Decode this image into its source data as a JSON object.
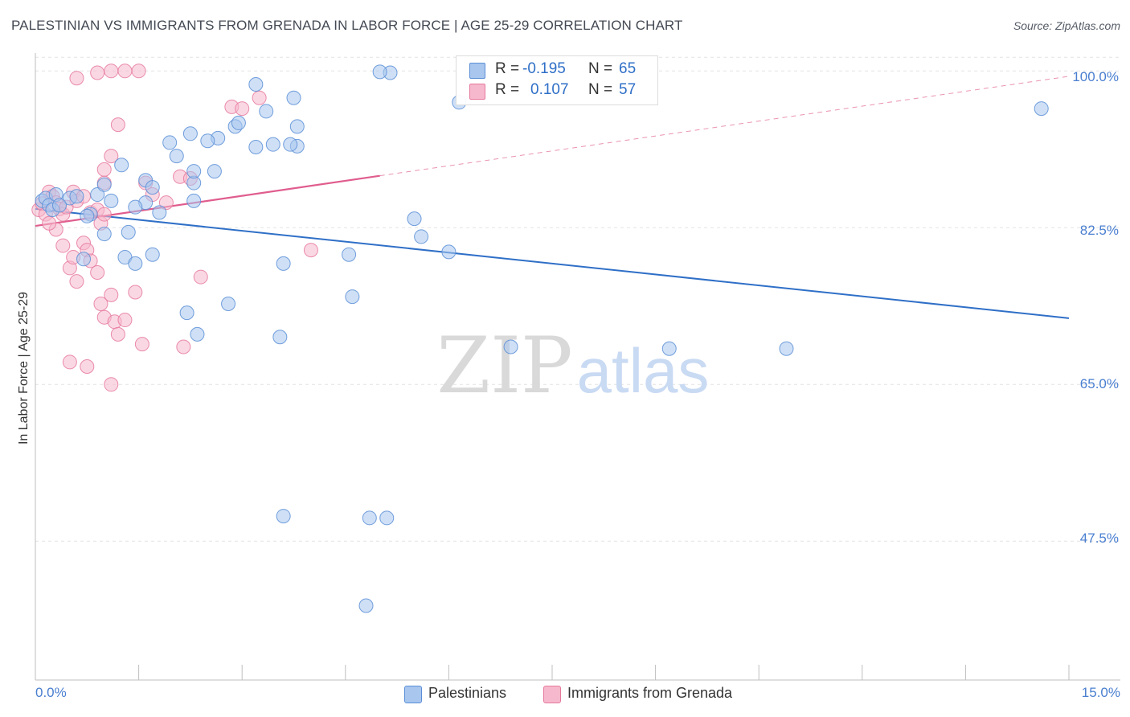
{
  "header": {
    "title": "PALESTINIAN VS IMMIGRANTS FROM GRENADA IN LABOR FORCE | AGE 25-29 CORRELATION CHART",
    "source": "Source: ZipAtlas.com"
  },
  "watermark": {
    "part1": "ZIP",
    "part2": "atlas"
  },
  "colors": {
    "blue_fill": "#a8c6ee",
    "blue_stroke": "#5b8ed6",
    "blue_line": "#2f6fc7",
    "pink_fill": "#f6b8cc",
    "pink_stroke": "#e6799d",
    "pink_line": "#e05d8e",
    "tick_label": "#4a7fd0"
  },
  "legend": {
    "series1": {
      "r_label": "R =",
      "r_value": "-0.195",
      "n_label": "N =",
      "n_value": "65"
    },
    "series2": {
      "r_label": "R =",
      "r_value": "0.107",
      "n_label": "N =",
      "n_value": "57"
    }
  },
  "chart_data": {
    "type": "scatter",
    "title": "PALESTINIAN VS IMMIGRANTS FROM GRENADA IN LABOR FORCE | AGE 25-29 CORRELATION CHART",
    "xlabel": "",
    "ylabel": "In Labor Force | Age 25-29",
    "xlim": [
      0,
      15
    ],
    "ylim": [
      32,
      102
    ],
    "x_tick_labels": [
      "0.0%",
      "15.0%"
    ],
    "y_ticks": [
      {
        "value": 100,
        "label": "100.0%"
      },
      {
        "value": 82.5,
        "label": "82.5%"
      },
      {
        "value": 65,
        "label": "65.0%"
      },
      {
        "value": 47.5,
        "label": "47.5%"
      }
    ],
    "grid": true,
    "legend_position": "top-center",
    "series": [
      {
        "name": "Palestinians",
        "color": "blue",
        "trend": {
          "x0": 0,
          "y0": 84.6,
          "x1": 15,
          "y1": 72.4
        },
        "points": [
          [
            0.1,
            85.5
          ],
          [
            0.15,
            85.8
          ],
          [
            0.2,
            85.0
          ],
          [
            0.25,
            84.5
          ],
          [
            0.3,
            86.2
          ],
          [
            0.5,
            85.8
          ],
          [
            0.6,
            86.0
          ],
          [
            0.7,
            79.0
          ],
          [
            0.8,
            84.0
          ],
          [
            0.9,
            86.2
          ],
          [
            1.0,
            81.8
          ],
          [
            1.1,
            85.5
          ],
          [
            1.25,
            89.5
          ],
          [
            1.3,
            79.2
          ],
          [
            1.0,
            87.3
          ],
          [
            0.35,
            85.0
          ],
          [
            0.75,
            83.8
          ],
          [
            1.6,
            87.8
          ],
          [
            1.7,
            79.5
          ],
          [
            1.8,
            84.2
          ],
          [
            1.6,
            85.3
          ],
          [
            2.3,
            85.5
          ],
          [
            2.3,
            87.5
          ],
          [
            2.6,
            88.8
          ],
          [
            2.65,
            92.5
          ],
          [
            1.45,
            78.5
          ],
          [
            1.35,
            82.0
          ],
          [
            1.45,
            84.8
          ],
          [
            1.95,
            92.0
          ],
          [
            2.25,
            93.0
          ],
          [
            2.5,
            92.2
          ],
          [
            2.05,
            90.5
          ],
          [
            2.3,
            88.8
          ],
          [
            2.2,
            73.0
          ],
          [
            2.9,
            93.8
          ],
          [
            3.2,
            91.5
          ],
          [
            3.8,
            91.6
          ],
          [
            3.45,
            91.8
          ],
          [
            3.8,
            93.8
          ],
          [
            3.35,
            95.5
          ],
          [
            3.75,
            97.0
          ],
          [
            3.7,
            91.8
          ],
          [
            3.2,
            98.5
          ],
          [
            2.95,
            94.2
          ],
          [
            3.6,
            78.5
          ],
          [
            4.55,
            79.5
          ],
          [
            4.6,
            74.8
          ],
          [
            5.5,
            83.5
          ],
          [
            5.6,
            81.5
          ],
          [
            6.0,
            79.8
          ],
          [
            2.35,
            70.6
          ],
          [
            2.8,
            74.0
          ],
          [
            3.55,
            70.3
          ],
          [
            3.6,
            50.3
          ],
          [
            4.85,
            50.1
          ],
          [
            5.1,
            50.1
          ],
          [
            4.8,
            40.3
          ],
          [
            5.15,
            99.8
          ],
          [
            6.15,
            96.5
          ],
          [
            6.9,
            69.2
          ],
          [
            9.2,
            69.0
          ],
          [
            10.9,
            69.0
          ],
          [
            14.6,
            95.8
          ],
          [
            5.0,
            99.9
          ],
          [
            1.7,
            87.0
          ]
        ]
      },
      {
        "name": "Immigrants from Grenada",
        "color": "pink",
        "trend": {
          "x0": 0,
          "y0": 82.7,
          "x1": 5.0,
          "y1": 88.3
        },
        "trend_ext": {
          "x0": 5.0,
          "y0": 88.3,
          "x1": 15,
          "y1": 99.4
        },
        "points": [
          [
            0.05,
            84.5
          ],
          [
            0.1,
            85.2
          ],
          [
            0.15,
            84.0
          ],
          [
            0.2,
            86.5
          ],
          [
            0.25,
            86.0
          ],
          [
            0.3,
            85.3
          ],
          [
            0.35,
            84.6
          ],
          [
            0.4,
            84.0
          ],
          [
            0.45,
            84.8
          ],
          [
            0.55,
            86.5
          ],
          [
            0.6,
            85.5
          ],
          [
            0.7,
            86.0
          ],
          [
            0.8,
            84.2
          ],
          [
            0.9,
            84.5
          ],
          [
            0.95,
            83.0
          ],
          [
            1.0,
            84.0
          ],
          [
            0.3,
            82.3
          ],
          [
            0.4,
            80.5
          ],
          [
            0.5,
            78.0
          ],
          [
            0.55,
            79.2
          ],
          [
            0.6,
            76.5
          ],
          [
            0.7,
            80.8
          ],
          [
            0.75,
            80.0
          ],
          [
            0.8,
            78.8
          ],
          [
            0.9,
            77.5
          ],
          [
            0.95,
            74.0
          ],
          [
            1.0,
            72.5
          ],
          [
            1.1,
            75.0
          ],
          [
            1.15,
            72.0
          ],
          [
            1.2,
            70.6
          ],
          [
            1.3,
            72.2
          ],
          [
            1.6,
            87.5
          ],
          [
            1.7,
            86.2
          ],
          [
            1.9,
            85.3
          ],
          [
            2.1,
            88.2
          ],
          [
            2.25,
            88.0
          ],
          [
            2.4,
            77.0
          ],
          [
            2.85,
            96.0
          ],
          [
            3.0,
            95.8
          ],
          [
            3.25,
            97.0
          ],
          [
            1.0,
            89.0
          ],
          [
            1.1,
            90.5
          ],
          [
            1.2,
            94.0
          ],
          [
            0.6,
            99.2
          ],
          [
            0.9,
            99.8
          ],
          [
            1.1,
            100.0
          ],
          [
            1.3,
            100.0
          ],
          [
            1.5,
            100.0
          ],
          [
            4.0,
            80.0
          ],
          [
            0.5,
            67.5
          ],
          [
            0.75,
            67.0
          ],
          [
            1.1,
            65.0
          ],
          [
            1.55,
            69.5
          ],
          [
            2.15,
            69.2
          ],
          [
            1.45,
            75.3
          ],
          [
            0.2,
            83.0
          ],
          [
            1.0,
            87.5
          ]
        ]
      }
    ]
  },
  "bottom_legend": {
    "series1_label": "Palestinians",
    "series2_label": "Immigrants from Grenada"
  }
}
